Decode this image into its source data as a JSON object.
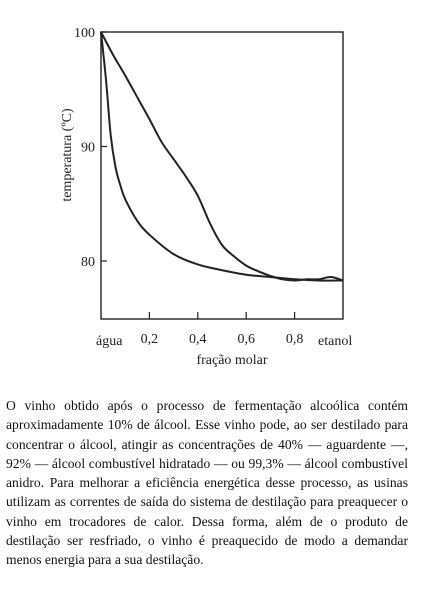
{
  "chart_data": {
    "type": "line",
    "ylabel": "temperatura (ºC)",
    "xlabel": "fração molar",
    "x_end_labels": {
      "left": "água",
      "right": "etanol"
    },
    "x_ticks": [
      "0,2",
      "0,4",
      "0,6",
      "0,8"
    ],
    "x_tick_values": [
      0.2,
      0.4,
      0.6,
      0.8
    ],
    "y_ticks": [
      "100",
      "90",
      "80"
    ],
    "y_tick_values": [
      100,
      90,
      80
    ],
    "xlim": [
      0,
      1
    ],
    "ylim": [
      75,
      100
    ],
    "series": [
      {
        "values": [
          [
            0.0,
            100.0
          ],
          [
            0.05,
            98.0
          ],
          [
            0.1,
            96.2
          ],
          [
            0.15,
            94.3
          ],
          [
            0.2,
            92.4
          ],
          [
            0.25,
            90.4
          ],
          [
            0.3,
            88.9
          ],
          [
            0.35,
            87.4
          ],
          [
            0.4,
            85.7
          ],
          [
            0.45,
            83.3
          ],
          [
            0.5,
            81.4
          ],
          [
            0.55,
            80.4
          ],
          [
            0.6,
            79.6
          ],
          [
            0.65,
            79.1
          ],
          [
            0.7,
            78.7
          ],
          [
            0.75,
            78.4
          ],
          [
            0.8,
            78.3
          ],
          [
            0.85,
            78.4
          ],
          [
            0.9,
            78.4
          ],
          [
            0.95,
            78.6
          ],
          [
            1.0,
            78.3
          ]
        ]
      },
      {
        "values": [
          [
            0.0,
            100.0
          ],
          [
            0.02,
            96.0
          ],
          [
            0.04,
            91.0
          ],
          [
            0.06,
            88.2
          ],
          [
            0.08,
            86.6
          ],
          [
            0.1,
            85.4
          ],
          [
            0.15,
            83.5
          ],
          [
            0.2,
            82.3
          ],
          [
            0.3,
            80.6
          ],
          [
            0.4,
            79.7
          ],
          [
            0.5,
            79.2
          ],
          [
            0.6,
            78.8
          ],
          [
            0.7,
            78.6
          ],
          [
            0.8,
            78.4
          ],
          [
            0.9,
            78.3
          ],
          [
            1.0,
            78.3
          ]
        ]
      }
    ]
  },
  "text": {
    "paragraph": "O vinho obtido após o processo de fermentação alcoólica contém aproximadamente 10% de álcool. Esse vinho pode, ao ser destilado para concentrar o álcool, atingir as concentrações de 40% — aguardente —, 92% — álcool combustível hidratado — ou 99,3% — álcool combustível anidro. Para melhorar a eficiência energética desse processo, as usinas utilizam as correntes de saída do sistema de destilação para preaquecer o vinho em trocadores de calor. Dessa forma, além de o produto de destilação ser resfriado, o vinho é preaquecido de modo a demandar menos energia para a sua destilação."
  }
}
